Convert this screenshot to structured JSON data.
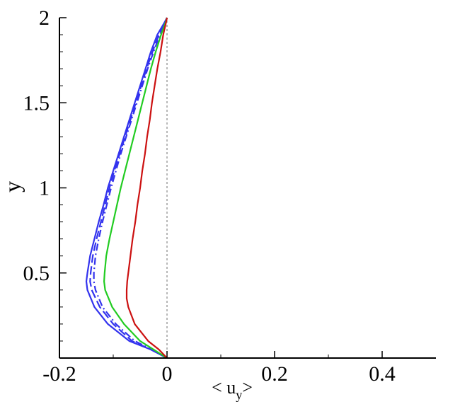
{
  "chart_data": {
    "type": "line",
    "title": "",
    "xlabel": {
      "main": "< u",
      "sub": "y",
      "close": ">"
    },
    "ylabel": "y",
    "xlim": [
      -0.2,
      0.5
    ],
    "ylim": [
      0,
      2
    ],
    "x_ticks": [
      {
        "value": -0.2,
        "label": "-0.2"
      },
      {
        "value": 0,
        "label": "0"
      },
      {
        "value": 0.2,
        "label": "0.2"
      },
      {
        "value": 0.4,
        "label": "0.4"
      }
    ],
    "y_ticks": [
      {
        "value": 0.5,
        "label": "0.5"
      },
      {
        "value": 1,
        "label": "1"
      },
      {
        "value": 1.5,
        "label": "1.5"
      },
      {
        "value": 2,
        "label": "2"
      }
    ],
    "grid": false,
    "legend": "none",
    "reference_line": {
      "x": 0,
      "style": "dotted",
      "color": "#888888"
    },
    "series": [
      {
        "color": "#3333ee",
        "style": "solid",
        "points": [
          [
            0,
            0
          ],
          [
            -0.03,
            0.05
          ],
          [
            -0.07,
            0.1
          ],
          [
            -0.11,
            0.2
          ],
          [
            -0.135,
            0.3
          ],
          [
            -0.148,
            0.4
          ],
          [
            -0.15,
            0.45
          ],
          [
            -0.148,
            0.5
          ],
          [
            -0.143,
            0.6
          ],
          [
            -0.135,
            0.7
          ],
          [
            -0.127,
            0.8
          ],
          [
            -0.118,
            0.9
          ],
          [
            -0.11,
            1.0
          ],
          [
            -0.1,
            1.1
          ],
          [
            -0.09,
            1.2
          ],
          [
            -0.08,
            1.3
          ],
          [
            -0.07,
            1.4
          ],
          [
            -0.06,
            1.5
          ],
          [
            -0.05,
            1.6
          ],
          [
            -0.04,
            1.7
          ],
          [
            -0.03,
            1.8
          ],
          [
            -0.018,
            1.9
          ],
          [
            -0.005,
            1.97
          ],
          [
            0,
            2
          ]
        ]
      },
      {
        "color": "#3333ee",
        "style": "dashed",
        "points": [
          [
            0,
            0
          ],
          [
            -0.03,
            0.05
          ],
          [
            -0.065,
            0.1
          ],
          [
            -0.1,
            0.2
          ],
          [
            -0.125,
            0.3
          ],
          [
            -0.14,
            0.4
          ],
          [
            -0.143,
            0.45
          ],
          [
            -0.142,
            0.5
          ],
          [
            -0.138,
            0.6
          ],
          [
            -0.131,
            0.7
          ],
          [
            -0.123,
            0.8
          ],
          [
            -0.115,
            0.9
          ],
          [
            -0.107,
            1.0
          ],
          [
            -0.098,
            1.1
          ],
          [
            -0.088,
            1.2
          ],
          [
            -0.078,
            1.3
          ],
          [
            -0.068,
            1.4
          ],
          [
            -0.058,
            1.5
          ],
          [
            -0.048,
            1.6
          ],
          [
            -0.038,
            1.7
          ],
          [
            -0.027,
            1.8
          ],
          [
            -0.015,
            1.9
          ],
          [
            -0.004,
            1.97
          ],
          [
            0,
            2
          ]
        ]
      },
      {
        "color": "#3333ee",
        "style": "dashdot",
        "points": [
          [
            0,
            0
          ],
          [
            -0.028,
            0.05
          ],
          [
            -0.06,
            0.1
          ],
          [
            -0.095,
            0.2
          ],
          [
            -0.12,
            0.3
          ],
          [
            -0.133,
            0.4
          ],
          [
            -0.136,
            0.45
          ],
          [
            -0.136,
            0.5
          ],
          [
            -0.133,
            0.6
          ],
          [
            -0.127,
            0.7
          ],
          [
            -0.12,
            0.8
          ],
          [
            -0.112,
            0.9
          ],
          [
            -0.104,
            1.0
          ],
          [
            -0.095,
            1.1
          ],
          [
            -0.086,
            1.2
          ],
          [
            -0.076,
            1.3
          ],
          [
            -0.066,
            1.4
          ],
          [
            -0.056,
            1.5
          ],
          [
            -0.046,
            1.6
          ],
          [
            -0.036,
            1.7
          ],
          [
            -0.025,
            1.8
          ],
          [
            -0.013,
            1.9
          ],
          [
            -0.003,
            1.97
          ],
          [
            0,
            2
          ]
        ]
      },
      {
        "color": "#22cc22",
        "style": "solid",
        "points": [
          [
            0,
            0
          ],
          [
            -0.025,
            0.05
          ],
          [
            -0.05,
            0.1
          ],
          [
            -0.08,
            0.2
          ],
          [
            -0.102,
            0.3
          ],
          [
            -0.115,
            0.4
          ],
          [
            -0.117,
            0.45
          ],
          [
            -0.116,
            0.5
          ],
          [
            -0.113,
            0.6
          ],
          [
            -0.107,
            0.7
          ],
          [
            -0.1,
            0.8
          ],
          [
            -0.093,
            0.9
          ],
          [
            -0.086,
            1.0
          ],
          [
            -0.078,
            1.1
          ],
          [
            -0.07,
            1.2
          ],
          [
            -0.062,
            1.3
          ],
          [
            -0.054,
            1.4
          ],
          [
            -0.046,
            1.5
          ],
          [
            -0.038,
            1.6
          ],
          [
            -0.03,
            1.7
          ],
          [
            -0.021,
            1.8
          ],
          [
            -0.011,
            1.9
          ],
          [
            -0.003,
            1.97
          ],
          [
            0,
            2
          ]
        ]
      },
      {
        "color": "#cc1111",
        "style": "solid",
        "points": [
          [
            0,
            0
          ],
          [
            -0.015,
            0.05
          ],
          [
            -0.035,
            0.1
          ],
          [
            -0.06,
            0.2
          ],
          [
            -0.072,
            0.3
          ],
          [
            -0.075,
            0.35
          ],
          [
            -0.075,
            0.4
          ],
          [
            -0.074,
            0.45
          ],
          [
            -0.072,
            0.5
          ],
          [
            -0.068,
            0.6
          ],
          [
            -0.064,
            0.7
          ],
          [
            -0.059,
            0.8
          ],
          [
            -0.055,
            0.9
          ],
          [
            -0.05,
            1.0
          ],
          [
            -0.046,
            1.1
          ],
          [
            -0.041,
            1.2
          ],
          [
            -0.037,
            1.3
          ],
          [
            -0.032,
            1.4
          ],
          [
            -0.028,
            1.5
          ],
          [
            -0.023,
            1.6
          ],
          [
            -0.018,
            1.7
          ],
          [
            -0.012,
            1.8
          ],
          [
            -0.007,
            1.9
          ],
          [
            -0.002,
            1.97
          ],
          [
            0,
            2
          ]
        ]
      }
    ]
  }
}
